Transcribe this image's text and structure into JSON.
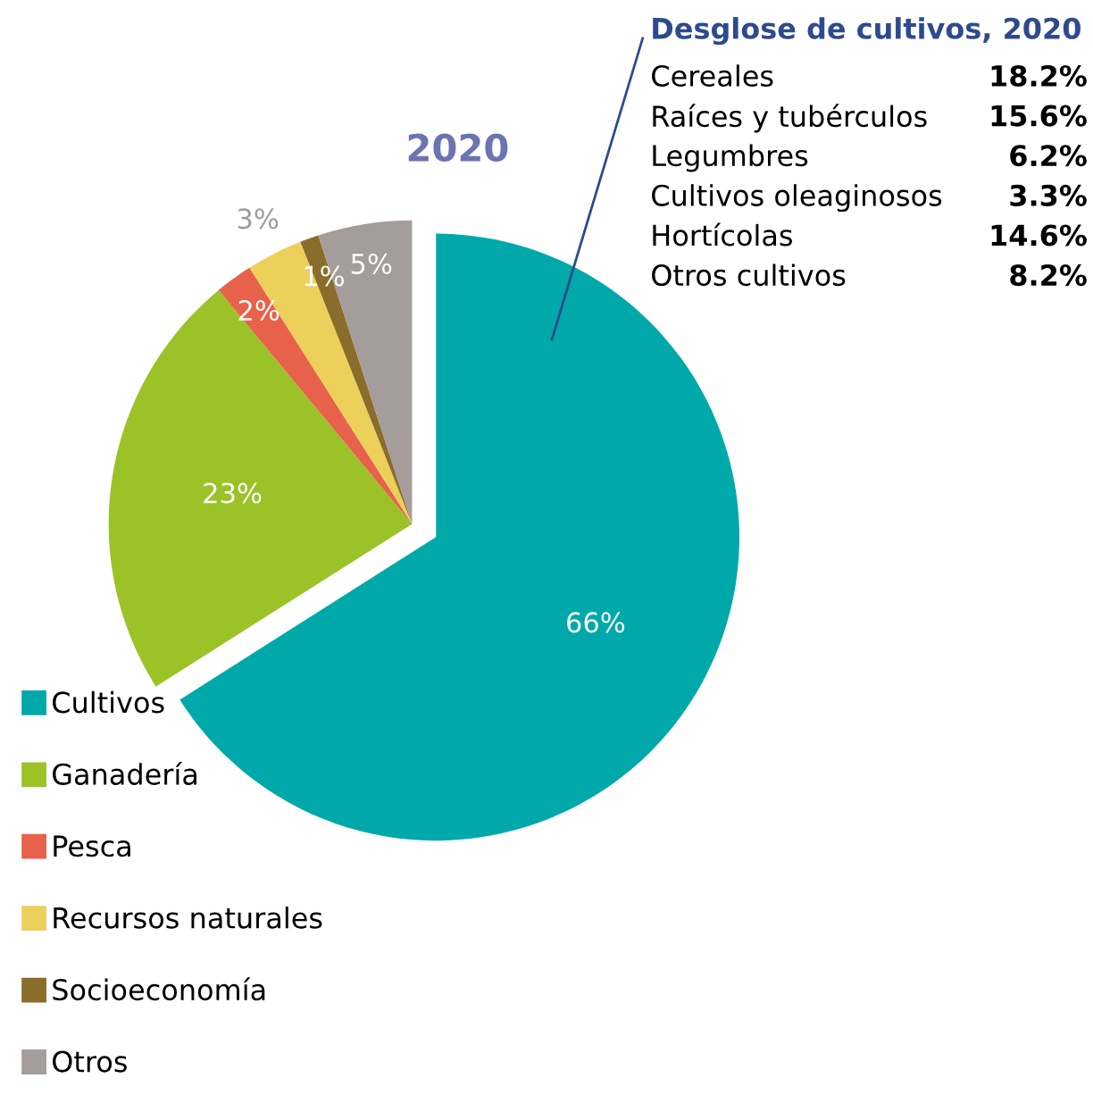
{
  "chart_data": [
    {
      "type": "pie",
      "title": "2020",
      "categories": [
        "Cultivos",
        "Ganadería",
        "Pesca",
        "Recursos naturales",
        "Socioeconomía",
        "Otros"
      ],
      "values": [
        66,
        23,
        2,
        3,
        1,
        5
      ],
      "colors": [
        "#00a9a9",
        "#9bc227",
        "#e8614a",
        "#edd05a",
        "#8a6d2a",
        "#a59c9c"
      ],
      "value_labels": [
        "66%",
        "23%",
        "2%",
        "3%",
        "1%",
        "5%"
      ],
      "legend": "bottom left"
    },
    {
      "type": "other",
      "title": "Desglose de cultivos, 2020",
      "categories": [
        "Cereales",
        "Raíces y tubérculos",
        "Legumbres",
        "Cultivos oleaginosos",
        "Hortícolas",
        "Otros cultivos"
      ],
      "value_labels": [
        "18.2%",
        "15.6%",
        "6.2%",
        "3.3%",
        "14.6%",
        "8.2%"
      ]
    }
  ]
}
